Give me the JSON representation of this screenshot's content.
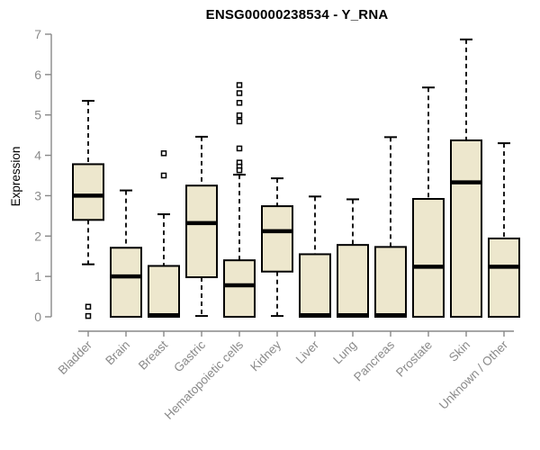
{
  "chart_data": {
    "type": "box",
    "title": "ENSG00000238534 - Y_RNA",
    "ylabel": "Expression",
    "xlabel": "",
    "ylim": [
      0,
      7
    ],
    "yticks": [
      0,
      1,
      2,
      3,
      4,
      5,
      6,
      7
    ],
    "grid": false,
    "legend": "none",
    "categories": [
      "Bladder",
      "Brain",
      "Breast",
      "Gastric",
      "Hematopoietic cells",
      "Kidney",
      "Liver",
      "Lung",
      "Pancreas",
      "Prostate",
      "Skin",
      "Unknown / Other"
    ],
    "series": [
      {
        "name": "Bladder",
        "low": 1.3,
        "q1": 2.4,
        "median": 3.0,
        "q3": 3.78,
        "high": 5.35,
        "outliers": [
          0.25,
          0.02
        ]
      },
      {
        "name": "Brain",
        "low": 0.0,
        "q1": 0.0,
        "median": 1.0,
        "q3": 1.71,
        "high": 3.13,
        "outliers": []
      },
      {
        "name": "Breast",
        "low": 0.0,
        "q1": 0.0,
        "median": 0.04,
        "q3": 1.26,
        "high": 2.54,
        "outliers": [
          4.05,
          3.5
        ]
      },
      {
        "name": "Gastric",
        "low": 0.02,
        "q1": 0.98,
        "median": 2.32,
        "q3": 3.25,
        "high": 4.46,
        "outliers": []
      },
      {
        "name": "Hematopoietic cells",
        "low": 0.0,
        "q1": 0.0,
        "median": 0.78,
        "q3": 1.4,
        "high": 3.52,
        "outliers": [
          5.74,
          5.54,
          5.3,
          4.99,
          4.84,
          4.17,
          3.82,
          3.72,
          3.63
        ]
      },
      {
        "name": "Kidney",
        "low": 0.02,
        "q1": 1.12,
        "median": 2.12,
        "q3": 2.74,
        "high": 3.43,
        "outliers": []
      },
      {
        "name": "Liver",
        "low": 0.0,
        "q1": 0.0,
        "median": 0.04,
        "q3": 1.55,
        "high": 2.98,
        "outliers": []
      },
      {
        "name": "Lung",
        "low": 0.0,
        "q1": 0.0,
        "median": 0.04,
        "q3": 1.78,
        "high": 2.91,
        "outliers": []
      },
      {
        "name": "Pancreas",
        "low": 0.0,
        "q1": 0.0,
        "median": 0.04,
        "q3": 1.73,
        "high": 4.45,
        "outliers": []
      },
      {
        "name": "Prostate",
        "low": 0.0,
        "q1": 0.0,
        "median": 1.24,
        "q3": 2.92,
        "high": 5.68,
        "outliers": []
      },
      {
        "name": "Skin",
        "low": 0.0,
        "q1": 0.0,
        "median": 3.33,
        "q3": 4.37,
        "high": 6.87,
        "outliers": []
      },
      {
        "name": "Unknown / Other",
        "low": 0.0,
        "q1": 0.0,
        "median": 1.24,
        "q3": 1.94,
        "high": 4.3,
        "outliers": []
      }
    ],
    "colors": {
      "box_fill": "#EDE7CD",
      "box_border": "#000000",
      "median": "#000000",
      "whisker": "#000000",
      "outlier_stroke": "#000000",
      "outlier_fill": "#ffffff",
      "axis": "#888888",
      "tick_label": "#8a8a8a",
      "title": "#000000",
      "background": "#ffffff"
    }
  }
}
